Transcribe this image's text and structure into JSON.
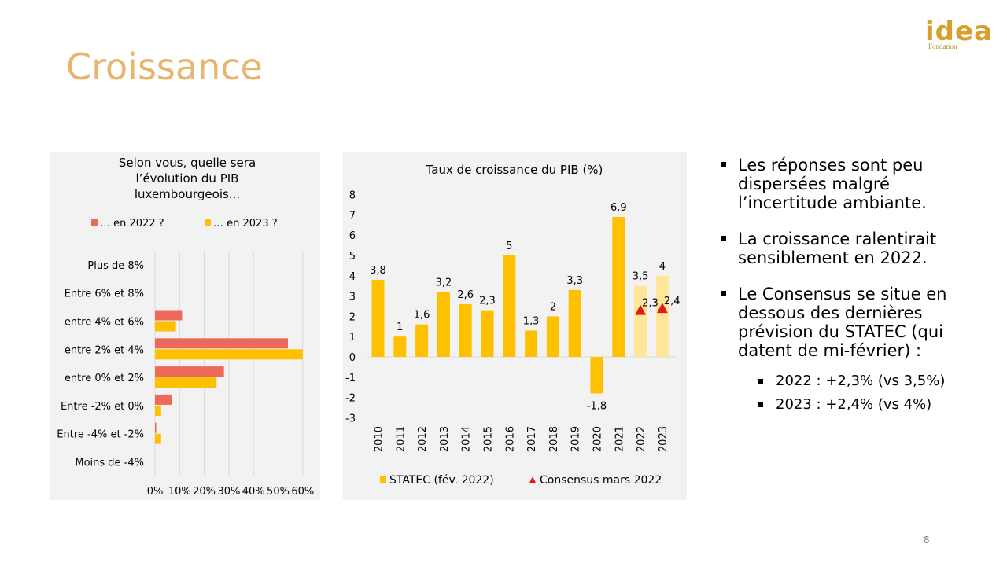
{
  "slide": {
    "title": "Croissance",
    "page_number": "8",
    "logo": {
      "word": "idea",
      "sub": "Fondation"
    }
  },
  "bullets": [
    {
      "text": "Les réponses sont peu dispersées malgré l’incertitude ambiante."
    },
    {
      "text": "La croissance ralentirait sensiblement en 2022."
    },
    {
      "text": "Le Consensus se situe en dessous des dernières prévision du STATEC (qui datent de mi-février) :",
      "sub": [
        "2022 : +2,3% (vs 3,5%)",
        "2023 : +2,4% (vs 4%)"
      ]
    }
  ],
  "colors": {
    "red": "#ed6a5a",
    "yellow": "#ffc000",
    "light_yellow": "#ffe699",
    "triangle": "#e31a1c",
    "title": "#e7b66e",
    "panel": "#f2f2f2"
  },
  "chart_data": [
    {
      "type": "bar",
      "orientation": "horizontal",
      "title": "Selon vous, quelle sera l’évolution du PIB luxembourgeois...",
      "title_lines": [
        "Selon vous, quelle sera",
        "l’évolution du PIB",
        "luxembourgeois..."
      ],
      "categories": [
        "Plus de 8%",
        "Entre 6% et 8%",
        "entre 4% et 6%",
        "entre 2% et 4%",
        "entre 0% et 2%",
        "Entre -2% et 0%",
        "Entre -4% et -2%",
        "Moins de -4%"
      ],
      "series": [
        {
          "name": "… en 2022 ?",
          "color": "#ed6a5a",
          "values": [
            0,
            0,
            0.11,
            0.54,
            0.28,
            0.07,
            0.005,
            0
          ]
        },
        {
          "name": "… en 2023 ?",
          "color": "#ffc000",
          "values": [
            0,
            0,
            0.085,
            0.6,
            0.25,
            0.025,
            0.025,
            0
          ]
        }
      ],
      "xlim": [
        0,
        0.6
      ],
      "xticks": [
        "0%",
        "10%",
        "20%",
        "30%",
        "40%",
        "50%",
        "60%"
      ],
      "legend": "top"
    },
    {
      "type": "bar",
      "title": "Taux de croissance du PIB (%)",
      "categories": [
        "2010",
        "2011",
        "2012",
        "2013",
        "2014",
        "2015",
        "2016",
        "2017",
        "2018",
        "2019",
        "2020",
        "2021",
        "2022",
        "2023"
      ],
      "series": [
        {
          "name": "STATEC (fév. 2022)",
          "color": "#ffc000",
          "forecast_color": "#ffe699",
          "values": [
            3.8,
            1,
            1.6,
            3.2,
            2.6,
            2.3,
            5,
            1.3,
            2,
            3.3,
            -1.8,
            6.9,
            3.5,
            4
          ],
          "labels": [
            "3,8",
            "1",
            "1,6",
            "3,2",
            "2,6",
            "2,3",
            "5",
            "1,3",
            "2",
            "3,3",
            "-1,8",
            "6,9",
            "3,5",
            "4"
          ]
        },
        {
          "name": "Consensus mars 2022",
          "marker": "triangle",
          "color": "#e31a1c",
          "points": [
            {
              "x": "2022",
              "y": 2.3,
              "label": "2,3"
            },
            {
              "x": "2023",
              "y": 2.4,
              "label": "2,4"
            }
          ]
        }
      ],
      "ylim": [
        -3,
        8
      ],
      "yticks": [
        "-3",
        "-2",
        "-1",
        "0",
        "1",
        "2",
        "3",
        "4",
        "5",
        "6",
        "7",
        "8"
      ],
      "legend": "bottom"
    }
  ]
}
